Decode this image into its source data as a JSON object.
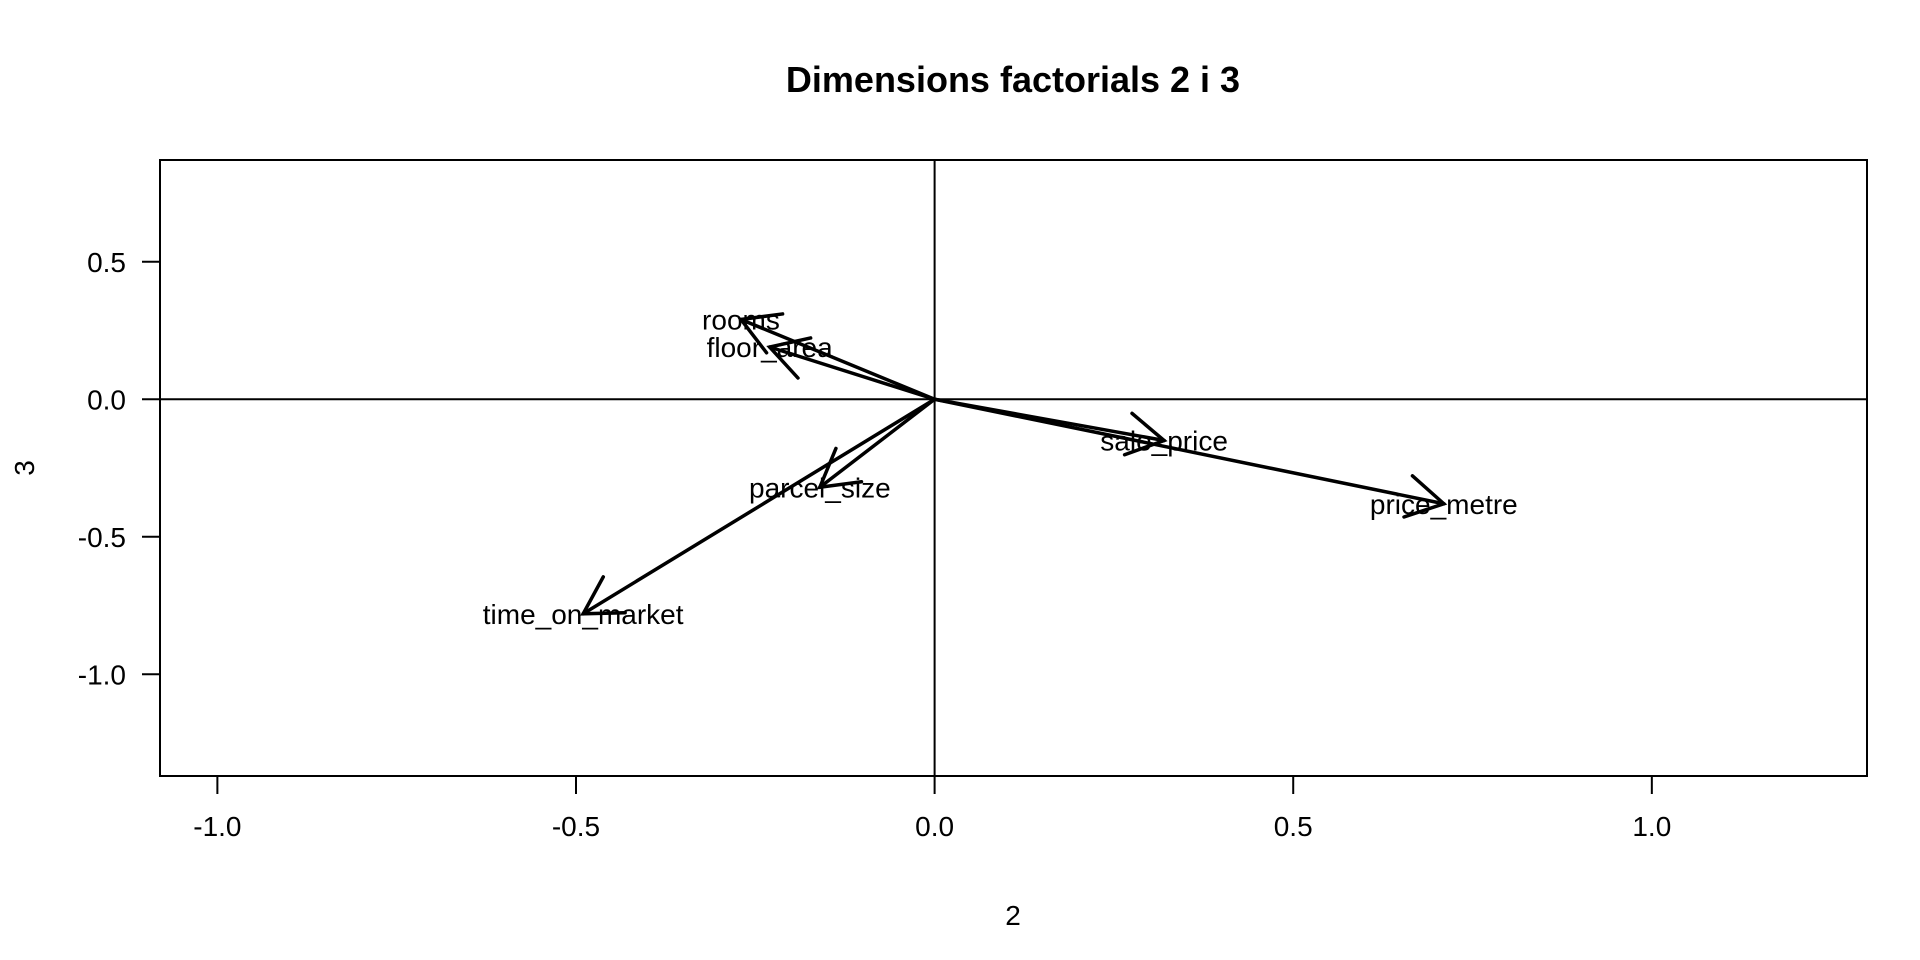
{
  "chart_data": {
    "type": "biplot-arrows",
    "title": "Dimensions factorials 2 i 3",
    "xlabel": "2",
    "ylabel": "3",
    "xlim": [
      -1.08,
      1.3
    ],
    "ylim": [
      -1.37,
      0.87
    ],
    "xticks": [
      -1.0,
      -0.5,
      0.0,
      0.5,
      1.0
    ],
    "xtick_labels": [
      "-1.0",
      "-0.5",
      "0.0",
      "0.5",
      "1.0"
    ],
    "yticks": [
      0.5,
      0.0,
      -0.5,
      -1.0
    ],
    "ytick_labels": [
      "0.5",
      "0.0",
      "-0.5",
      "-1.0"
    ],
    "reference_lines": {
      "x": 0.0,
      "y": 0.0
    },
    "grid": false,
    "vectors": [
      {
        "name": "rooms",
        "x": -0.27,
        "y": 0.29
      },
      {
        "name": "floor_area",
        "x": -0.23,
        "y": 0.19
      },
      {
        "name": "parcel_size",
        "x": -0.16,
        "y": -0.32
      },
      {
        "name": "time_on_market",
        "x": -0.49,
        "y": -0.78
      },
      {
        "name": "sale_price",
        "x": 0.32,
        "y": -0.15
      },
      {
        "name": "price_metre",
        "x": 0.71,
        "y": -0.38
      }
    ],
    "colors": {
      "ink": "#000000",
      "background": "#ffffff"
    }
  }
}
